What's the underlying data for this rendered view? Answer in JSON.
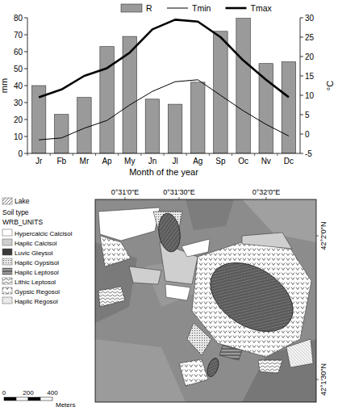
{
  "chart_data": {
    "type": "bar",
    "x_label": "Month of the year",
    "y_label": "mm",
    "y2_label": "°C",
    "categories": [
      "Jr",
      "Fb",
      "Mr",
      "Ap",
      "My",
      "Jn",
      "Jl",
      "Ag",
      "Sp",
      "Oc",
      "Nv",
      "Dc"
    ],
    "series": [
      {
        "name": "R",
        "type": "bar",
        "color": "#9a9a9a",
        "values": [
          40,
          23,
          33,
          63,
          69,
          32,
          29,
          42,
          72,
          80,
          53,
          54
        ]
      },
      {
        "name": "Tmin",
        "type": "line",
        "color": "#000000",
        "axis": "y2",
        "values": [
          -1.5,
          -1,
          1.5,
          3.5,
          7.5,
          11,
          13.5,
          14,
          10,
          6,
          2.5,
          -0.5
        ]
      },
      {
        "name": "Tmax",
        "type": "line",
        "color": "#000000",
        "axis": "y2",
        "values": [
          9.5,
          11.5,
          15,
          17,
          21,
          27,
          29.5,
          29,
          25,
          19,
          14,
          9.5
        ]
      }
    ],
    "ylim": [
      0,
      80
    ],
    "yticks": [
      0,
      10,
      20,
      30,
      40,
      50,
      60,
      70,
      80
    ],
    "y2lim": [
      -5,
      30
    ],
    "y2ticks": [
      -5,
      0,
      5,
      10,
      15,
      20,
      25,
      30
    ],
    "legend": "top",
    "grid": false
  },
  "map": {
    "lon_labels": [
      "0°31'0\"E",
      "0°31'30\"E",
      "0°32'0\"E"
    ],
    "lat_labels": [
      "42°2'0\"N",
      "42°1'30\"N"
    ],
    "legend": {
      "lake": "Lake",
      "title": "Soil type",
      "subtitle": "WRB_UNITS",
      "items": [
        "Hypercalcic Calcisol",
        "Haplic Calcisol",
        "Luvic Gleysol",
        "Haplic Gypsisol",
        "Haplic Leptosol",
        "Lithic Leptosol",
        "Gypsic Regosol",
        "Haplic Regosol"
      ]
    },
    "scale_bar": {
      "ticks": [
        "0",
        "200",
        "400"
      ],
      "unit": "Meters"
    }
  }
}
